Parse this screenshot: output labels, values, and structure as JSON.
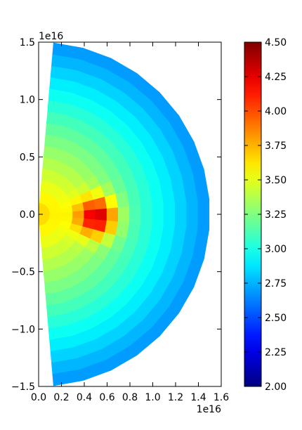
{
  "chart_data": {
    "type": "heatmap",
    "title": "",
    "xlabel": "",
    "ylabel": "",
    "x_exponent_label": "1e16",
    "y_exponent_label": "1e16",
    "xlim": [
      0.0,
      1.6
    ],
    "ylim": [
      -1.5,
      1.5
    ],
    "x_ticks": [
      0.0,
      0.2,
      0.4,
      0.6,
      0.8,
      1.0,
      1.2,
      1.4,
      1.6
    ],
    "x_tick_labels": [
      "0.0",
      "0.2",
      "0.4",
      "0.6",
      "0.8",
      "1.0",
      "1.2",
      "1.4",
      "1.6"
    ],
    "y_ticks": [
      -1.5,
      -1.0,
      -0.5,
      0.0,
      0.5,
      1.0,
      1.5
    ],
    "y_tick_labels": [
      "−1.5",
      "−1.0",
      "−0.5",
      "0.0",
      "0.5",
      "1.0",
      "1.5"
    ],
    "grid": false,
    "colormap": "jet",
    "colorbar": {
      "range": [
        2.0,
        4.5
      ],
      "ticks": [
        2.0,
        2.25,
        2.5,
        2.75,
        3.0,
        3.25,
        3.5,
        3.75,
        4.0,
        4.25,
        4.5
      ],
      "tick_labels": [
        "2.00",
        "2.25",
        "2.50",
        "2.75",
        "3.00",
        "3.25",
        "3.50",
        "3.75",
        "4.00",
        "4.25",
        "4.50"
      ]
    },
    "polar_grid": {
      "radial_edges": [
        0.0,
        0.1,
        0.2,
        0.3,
        0.4,
        0.5,
        0.6,
        0.7,
        0.8,
        0.9,
        1.0,
        1.1,
        1.2,
        1.3,
        1.4,
        1.5
      ],
      "angle_edges_deg": [
        -85,
        -75,
        -65,
        -55,
        -45,
        -35,
        -25,
        -15,
        -5,
        5,
        15,
        25,
        35,
        45,
        55,
        65,
        75,
        85
      ],
      "hotspot_center": [
        0.52,
        -0.02
      ],
      "hotspot_value": 4.5,
      "base_value": 3.68,
      "base_slope_per_1e16": 0.68,
      "hotspot_amplitude": 1.0,
      "hotspot_width": 0.12
    }
  }
}
